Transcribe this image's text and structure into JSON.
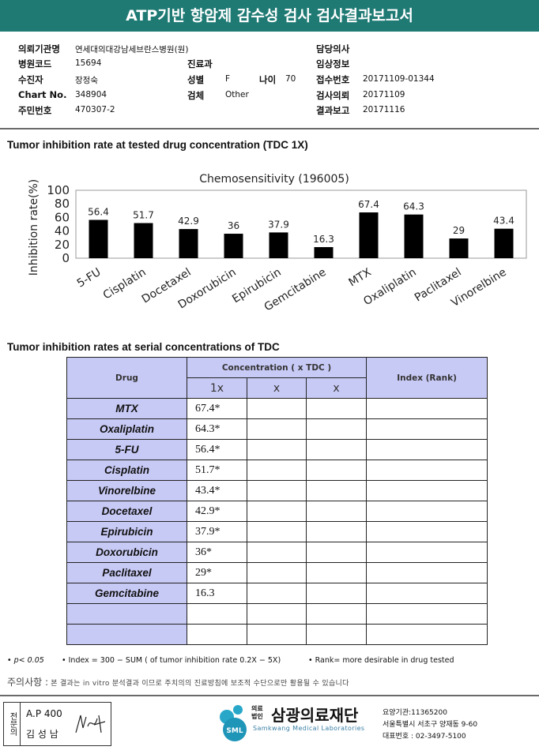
{
  "header": {
    "title": "ATP기반 항암제 감수성 검사 검사결과보고서"
  },
  "info": {
    "institution_label": "의뢰기관명",
    "institution": "연세대의대강남세브란스병원(원)",
    "hospital_code_label": "병원코드",
    "hospital_code": "15694",
    "patient_label": "수진자",
    "patient": "장정숙",
    "chart_label": "Chart No.",
    "chart_no": "348904",
    "rrn_label": "주민번호",
    "rrn": "470307-2",
    "dept_label": "진료과",
    "sex_label": "성별",
    "sex": "F",
    "age_label": "나이",
    "age": "70",
    "specimen_label": "검체",
    "specimen": "Other",
    "doctor_label": "담당의사",
    "clinical_label": "임상정보",
    "receipt_label": "접수번호",
    "receipt": "20171109-01344",
    "request_label": "검사의뢰",
    "request": "20171109",
    "report_label": "결과보고",
    "report": "20171116"
  },
  "section1_title": "Tumor inhibition rate at tested drug concentration (TDC 1X)",
  "chart_data": {
    "type": "bar",
    "title": "Chemosensitivity (196005)",
    "ylabel": "Inhibition rate(%)",
    "xlabel": "",
    "ylim": [
      0,
      100
    ],
    "yticks": [
      "0",
      "20",
      "40",
      "60",
      "80",
      "100"
    ],
    "categories": [
      "5-FU",
      "Cisplatin",
      "Docetaxel",
      "Doxorubicin",
      "Epirubicin",
      "Gemcitabine",
      "MTX",
      "Oxaliplatin",
      "Paclitaxel",
      "Vinorelbine"
    ],
    "values": [
      56.4,
      51.7,
      42.9,
      36,
      37.9,
      16.3,
      67.4,
      64.3,
      29,
      43.4
    ],
    "value_labels": [
      "56.4",
      "51.7",
      "42.9",
      "36",
      "37.9",
      "16.3",
      "67.4",
      "64.3",
      "29",
      "43.4"
    ],
    "bar_color": "#000000"
  },
  "section2_title": "Tumor inhibition rates at serial concentrations of TDC",
  "table": {
    "drug_header": "Drug",
    "conc_header": "Concentration ( x TDC )",
    "index_header": "Index (Rank)",
    "conc_cols": [
      "1x",
      "x",
      "x"
    ],
    "rows": [
      {
        "drug": "MTX",
        "v": "67.4*"
      },
      {
        "drug": "Oxaliplatin",
        "v": "64.3*"
      },
      {
        "drug": "5-FU",
        "v": "56.4*"
      },
      {
        "drug": "Cisplatin",
        "v": "51.7*"
      },
      {
        "drug": "Vinorelbine",
        "v": "43.4*"
      },
      {
        "drug": "Docetaxel",
        "v": "42.9*"
      },
      {
        "drug": "Epirubicin",
        "v": "37.9*"
      },
      {
        "drug": "Doxorubicin",
        "v": "36*"
      },
      {
        "drug": "Paclitaxel",
        "v": "29*"
      },
      {
        "drug": "Gemcitabine",
        "v": "16.3"
      },
      {
        "drug": "",
        "v": ""
      },
      {
        "drug": "",
        "v": ""
      }
    ]
  },
  "footnote": {
    "p": "• p< 0.05",
    "index": "• Index = 300 − SUM ( of tumor inhibition rate 0.2X − 5X)",
    "rank": "• Rank= more desirable in drug tested"
  },
  "caution": {
    "label": "주의사항 :",
    "text": "본 결과는 in vitro 분석결과 이므로 주치의의 진료방침에 보조적 수단으로만 활용될 수 있습니다"
  },
  "signature": {
    "side": "전문의",
    "code": "A.P 400",
    "name": "김 성 남"
  },
  "lab": {
    "prefix": "의료법인",
    "name": "삼광의료재단",
    "english": "Samkwang Medical Laboratories",
    "logo": "SML",
    "code": "요양기관:11365200",
    "address": "서울특별시 서초구 양재동 9-60",
    "phone": "대표번호 : 02-3497-5100"
  }
}
